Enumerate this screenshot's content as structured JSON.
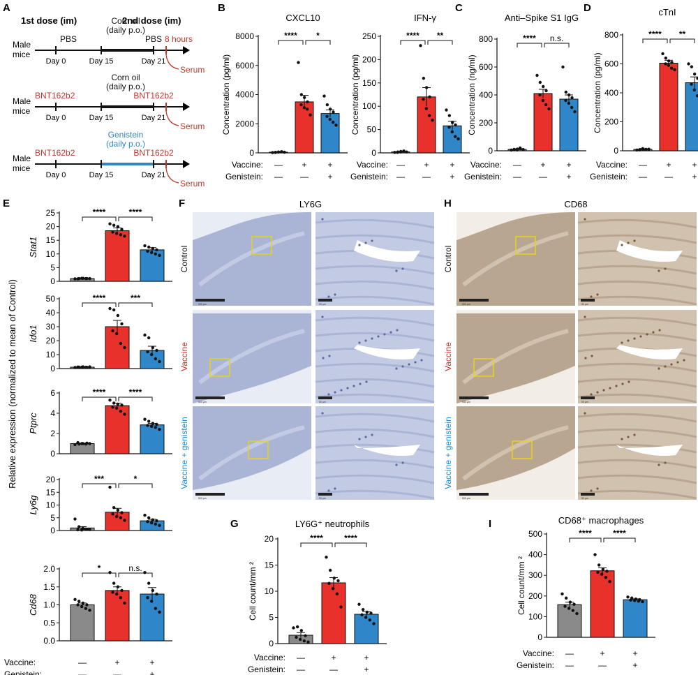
{
  "colors": {
    "control": "#8a8a8a",
    "vaccine": "#e8312a",
    "genistein": "#2f86c8",
    "red_text": "#c0392b",
    "blue_text": "#1a8fd0",
    "tissue_blue": "#b9c2dd",
    "tissue_brown": "#cdb9a6"
  },
  "panel_letters": [
    "A",
    "B",
    "C",
    "D",
    "E",
    "F",
    "G",
    "H",
    "I"
  ],
  "schematic": {
    "dose1": "1st dose (im)",
    "dose2": "2nd dose (im)",
    "rows": [
      {
        "mouse": "Male\nmice",
        "d0": "PBS",
        "mid": "Corn oil\n(daily p.o.)",
        "d21": "PBS",
        "extra": "8 hours",
        "serum": "Serum",
        "mid_color": "#111111"
      },
      {
        "mouse": "Male\nmice",
        "d0": "BNT162b2",
        "mid": "Corn oil\n(daily p.o.)",
        "d21": "BNT162b2",
        "extra": "",
        "serum": "Serum",
        "mid_color": "#111111"
      },
      {
        "mouse": "Male\nmice",
        "d0": "BNT162b2",
        "mid": "Genistein\n(daily p.o.)",
        "d21": "BNT162b2",
        "extra": "",
        "serum": "Serum",
        "mid_color": "#2f86c8"
      }
    ],
    "days": [
      "Day 0",
      "Day 15",
      "Day 21"
    ]
  },
  "treatment_rows": {
    "vaccine_label": "Vaccine:",
    "genistein_label": "Genistein:",
    "vaccine_marks": [
      "—",
      "+",
      "+"
    ],
    "genistein_marks": [
      "—",
      "—",
      "+"
    ]
  },
  "histology": {
    "F_title": "LY6G",
    "H_title": "CD68",
    "rows": [
      "Control",
      "Vaccine",
      "Vaccine + genistein"
    ],
    "scale_low": "500 µm",
    "scale_high": "50 µm"
  },
  "e_ylabel": "Relative expression (normalized to mean of Control)",
  "chart_data": [
    {
      "id": "B1",
      "type": "bar",
      "title": "CXCL10",
      "ylabel": "Concentration (pg/ml)",
      "ylim": [
        0,
        8000
      ],
      "ticks": [
        0,
        2000,
        4000,
        6000,
        8000
      ],
      "categories": [
        "Control",
        "Vaccine",
        "Vaccine + genistein"
      ],
      "values": [
        50,
        3500,
        2700
      ],
      "errors": [
        20,
        450,
        250
      ],
      "points": [
        [
          20,
          40,
          60,
          80,
          30,
          50,
          70,
          45
        ],
        [
          6200,
          4000,
          3800,
          3500,
          3300,
          3100,
          3000,
          2600
        ],
        [
          3900,
          3300,
          3000,
          2800,
          2500,
          2300,
          2100,
          1900
        ]
      ],
      "significance": [
        "****",
        "*"
      ]
    },
    {
      "id": "B2",
      "type": "bar",
      "title": "IFN-γ",
      "ylabel": "Concentration (pg/ml)",
      "ylim": [
        0,
        250
      ],
      "ticks": [
        0,
        50,
        100,
        150,
        200,
        250
      ],
      "categories": [
        "Control",
        "Vaccine",
        "Vaccine + genistein"
      ],
      "values": [
        2,
        120,
        58
      ],
      "errors": [
        1,
        20,
        10
      ],
      "points": [
        [
          1,
          2,
          3,
          4,
          1,
          2,
          3,
          2
        ],
        [
          230,
          160,
          140,
          120,
          115,
          95,
          80,
          70
        ],
        [
          92,
          80,
          65,
          60,
          55,
          45,
          35,
          30
        ]
      ],
      "significance": [
        "****",
        "**"
      ]
    },
    {
      "id": "C",
      "type": "bar",
      "title": "Anti–Spike S1 IgG",
      "ylabel": "Concentration (ng/ml)",
      "ylim": [
        0,
        800
      ],
      "ticks": [
        0,
        200,
        400,
        600,
        800
      ],
      "categories": [
        "Control",
        "Vaccine",
        "Vaccine + genistein"
      ],
      "values": [
        10,
        410,
        370
      ],
      "errors": [
        5,
        30,
        30
      ],
      "points": [
        [
          5,
          8,
          12,
          15,
          10,
          6,
          20,
          9
        ],
        [
          540,
          490,
          460,
          430,
          400,
          360,
          330,
          300
        ],
        [
          600,
          420,
          400,
          380,
          360,
          340,
          310,
          280
        ]
      ],
      "significance": [
        "****",
        "n.s."
      ]
    },
    {
      "id": "D",
      "type": "bar",
      "title": "cTnI",
      "ylabel": "Concentration (pg/ml)",
      "ylim": [
        0,
        800
      ],
      "ticks": [
        0,
        200,
        400,
        600,
        800
      ],
      "categories": [
        "Control",
        "Vaccine",
        "Vaccine + genistein"
      ],
      "values": [
        10,
        605,
        470
      ],
      "errors": [
        5,
        20,
        40
      ],
      "points": [
        [
          5,
          8,
          12,
          10,
          6,
          15,
          9,
          11
        ],
        [
          670,
          640,
          620,
          610,
          600,
          590,
          570,
          560
        ],
        [
          600,
          580,
          530,
          500,
          460,
          420,
          380,
          300
        ]
      ],
      "significance": [
        "****",
        "**"
      ]
    },
    {
      "id": "E1",
      "type": "bar",
      "ylabel": "Stat1",
      "ylim": [
        0,
        25
      ],
      "ticks": [
        0,
        5,
        10,
        15,
        20,
        25
      ],
      "categories": [
        "Control",
        "Vaccine",
        "Vaccine + genistein"
      ],
      "values": [
        1.0,
        18.5,
        11.5
      ],
      "errors": [
        0.1,
        1.0,
        0.8
      ],
      "points": [
        [
          0.9,
          1.0,
          1.1,
          1.0,
          0.9,
          1.1,
          1.0,
          1.0
        ],
        [
          21,
          20.5,
          20,
          19,
          18,
          17.5,
          17,
          16.5
        ],
        [
          13,
          12.5,
          12,
          11.5,
          11,
          10.5,
          10,
          9.5
        ]
      ],
      "significance": [
        "****",
        "****"
      ]
    },
    {
      "id": "E2",
      "type": "bar",
      "ylabel": "Ido1",
      "ylim": [
        0,
        50
      ],
      "ticks": [
        0,
        10,
        20,
        30,
        40,
        50
      ],
      "categories": [
        "Control",
        "Vaccine",
        "Vaccine + genistein"
      ],
      "values": [
        1.0,
        30,
        13
      ],
      "errors": [
        0.2,
        4.5,
        3
      ],
      "points": [
        [
          0.8,
          1.0,
          1.2,
          0.9,
          1.1,
          1.0,
          0.9,
          1.2
        ],
        [
          43,
          42,
          38,
          32,
          27,
          25,
          18,
          15
        ],
        [
          24,
          22,
          15,
          13,
          12,
          10,
          7,
          5
        ]
      ],
      "significance": [
        "****",
        "***"
      ]
    },
    {
      "id": "E3",
      "type": "bar",
      "ylabel": "Ptprc",
      "ylim": [
        0,
        6
      ],
      "ticks": [
        0,
        2,
        4,
        6
      ],
      "categories": [
        "Control",
        "Vaccine",
        "Vaccine + genistein"
      ],
      "values": [
        1.0,
        4.75,
        2.85
      ],
      "errors": [
        0.05,
        0.25,
        0.15
      ],
      "points": [
        [
          0.9,
          0.95,
          1.0,
          1.05,
          1.1,
          1.0,
          0.95,
          1.0
        ],
        [
          5.3,
          5.0,
          4.9,
          4.8,
          4.6,
          4.5,
          4.2,
          3.9
        ],
        [
          3.4,
          3.2,
          3.0,
          2.9,
          2.8,
          2.7,
          2.6,
          2.4
        ]
      ],
      "significance": [
        "****",
        "****"
      ]
    },
    {
      "id": "E4",
      "type": "bar",
      "ylabel": "Ly6g",
      "ylim": [
        0,
        20
      ],
      "ticks": [
        0,
        5,
        10,
        15,
        20
      ],
      "categories": [
        "Control",
        "Vaccine",
        "Vaccine + genistein"
      ],
      "values": [
        1.0,
        7.2,
        3.8
      ],
      "errors": [
        0.5,
        1.5,
        0.6
      ],
      "points": [
        [
          4.5,
          1.5,
          0.8,
          0.5,
          0.3,
          0.2,
          0.5,
          0.4
        ],
        [
          17,
          9,
          8,
          7,
          6.5,
          5.5,
          5,
          4
        ],
        [
          6,
          5,
          4.2,
          3.8,
          3.5,
          3,
          2.5,
          2
        ]
      ],
      "significance": [
        "***",
        "*"
      ]
    },
    {
      "id": "E5",
      "type": "bar",
      "ylabel": "Cd68",
      "ylim": [
        0,
        2.0
      ],
      "ticks": [
        0,
        0.5,
        1.0,
        1.5,
        2.0
      ],
      "ticklabels": [
        "0.0",
        "0.5",
        "1.0",
        "1.5",
        "2.0"
      ],
      "categories": [
        "Control",
        "Vaccine",
        "Vaccine + genistein"
      ],
      "values": [
        1.0,
        1.4,
        1.3
      ],
      "errors": [
        0.05,
        0.1,
        0.18
      ],
      "points": [
        [
          1.15,
          1.1,
          1.05,
          1.0,
          1.0,
          0.95,
          0.9,
          0.85
        ],
        [
          1.9,
          1.6,
          1.5,
          1.4,
          1.35,
          1.3,
          1.2,
          1.05
        ],
        [
          1.9,
          1.6,
          1.4,
          1.3,
          1.2,
          1.1,
          0.9,
          0.8
        ]
      ],
      "significance": [
        "*",
        "n.s."
      ]
    },
    {
      "id": "G",
      "type": "bar",
      "title": "LY6G⁺ neutrophils",
      "ylabel": "Cell count/mm ²",
      "ylim": [
        0,
        20
      ],
      "ticks": [
        0,
        5,
        10,
        15,
        20
      ],
      "categories": [
        "Control",
        "Vaccine",
        "Vaccine + genistein"
      ],
      "values": [
        1.6,
        11.6,
        5.6
      ],
      "errors": [
        0.5,
        1.0,
        0.5
      ],
      "points": [
        [
          3.0,
          3.2,
          2.5,
          1.5,
          1.2,
          0.8,
          0.5,
          0.3
        ],
        [
          16.5,
          14,
          12.5,
          12,
          11.5,
          10.5,
          9.5,
          7
        ],
        [
          7.5,
          6.5,
          6,
          5.8,
          5.5,
          5,
          4.5,
          3.8
        ]
      ],
      "significance": [
        "****",
        "****"
      ]
    },
    {
      "id": "I",
      "type": "bar",
      "title": "CD68⁺ macrophages",
      "ylabel": "Cell count/mm ²",
      "ylim": [
        0,
        500
      ],
      "ticks": [
        0,
        100,
        200,
        300,
        400,
        500
      ],
      "categories": [
        "Control",
        "Vaccine",
        "Vaccine + genistein"
      ],
      "values": [
        158,
        322,
        182
      ],
      "errors": [
        12,
        14,
        4
      ],
      "points": [
        [
          210,
          190,
          170,
          160,
          150,
          140,
          130,
          115
        ],
        [
          400,
          350,
          330,
          320,
          315,
          305,
          290,
          270
        ],
        [
          195,
          190,
          185,
          182,
          180,
          178,
          175,
          172
        ]
      ],
      "significance": [
        "****",
        "****"
      ]
    }
  ]
}
